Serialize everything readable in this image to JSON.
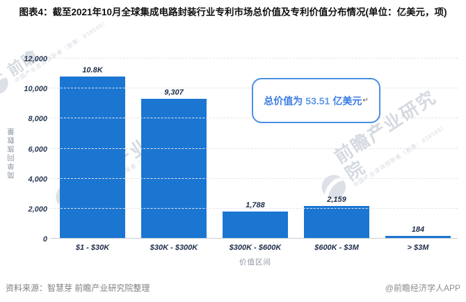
{
  "title": "图表4：截至2021年10月全球集成电路封装行业专利市场总价值及专利价值分布情况(单位：亿美元，项)",
  "chart_data": {
    "type": "bar",
    "categories": [
      "$1 - $30K",
      "$30K - $300K",
      "$300K - $600K",
      "$600K - $3M",
      "> $3M"
    ],
    "values": [
      10800,
      9307,
      1788,
      2159,
      184
    ],
    "value_labels": [
      "10.8K",
      "9,307",
      "1,788",
      "2,159",
      "184"
    ],
    "title": "截至2021年10月全球集成电路封装行业专利市场总价值及专利价值分布情况",
    "xlabel": "价值区间",
    "ylabel": "简单同族数量",
    "ylim": [
      0,
      12000
    ],
    "yticks": [
      "0",
      "2,000",
      "4,000",
      "6,000",
      "8,000",
      "10,000",
      "12,000"
    ],
    "grid": true,
    "legend_position": "none",
    "bar_color": "#1b76d2",
    "annotation": "总价值为 53.51 亿美元"
  },
  "annotation": {
    "prefix": "总价值为",
    "value": "53.51",
    "suffix": "亿美元",
    "cursor_glyph": "↵",
    "border_color": "#4a90e2",
    "text_color": "#3c7de4"
  },
  "footer": {
    "source": "资料来源：智慧芽 前瞻产业研究院整理",
    "credit": "@前瞻经济学人APP"
  },
  "watermark": {
    "brand": "前瞻产业研究院",
    "brand_short": "前瞻",
    "tagline": "中国产业咨询领导者（股票：839599）"
  }
}
